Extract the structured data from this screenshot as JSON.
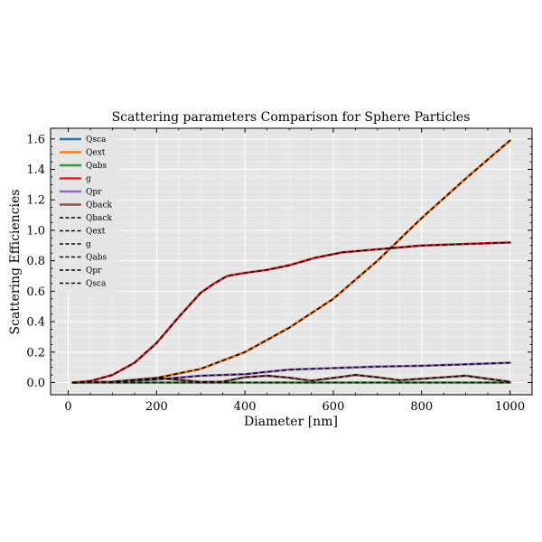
{
  "chart_data": {
    "type": "line",
    "title": "Scattering parameters Comparison for Sphere Particles",
    "xlabel": "Diameter [nm]",
    "ylabel": "Scattering Efficiencies",
    "xlim": [
      -40,
      1050
    ],
    "ylim": [
      -0.08,
      1.67
    ],
    "xticks": [
      0,
      200,
      400,
      600,
      800,
      1000
    ],
    "yticks": [
      0.0,
      0.2,
      0.4,
      0.6,
      0.8,
      1.0,
      1.2,
      1.4,
      1.6
    ],
    "xtick_labels": [
      "0",
      "200",
      "400",
      "600",
      "800",
      "1000"
    ],
    "ytick_labels": [
      "0.0",
      "0.2",
      "0.4",
      "0.6",
      "0.8",
      "1.0",
      "1.2",
      "1.4",
      "1.6"
    ],
    "grid": true,
    "background": "#e5e5e5",
    "legend_position": "upper-left",
    "series": [
      {
        "name": "Qsca",
        "style": "solid",
        "color": "#1f77b4",
        "x": [
          10,
          100,
          200,
          300,
          400,
          500,
          600,
          700,
          800,
          900,
          1000
        ],
        "y": [
          0.0,
          0.005,
          0.03,
          0.09,
          0.2,
          0.36,
          0.55,
          0.8,
          1.08,
          1.34,
          1.59
        ]
      },
      {
        "name": "Qext",
        "style": "solid",
        "color": "#ff7f0e",
        "x": [
          10,
          100,
          200,
          300,
          400,
          500,
          600,
          700,
          800,
          900,
          1000
        ],
        "y": [
          0.0,
          0.005,
          0.03,
          0.09,
          0.2,
          0.36,
          0.55,
          0.8,
          1.08,
          1.34,
          1.59
        ]
      },
      {
        "name": "Qabs",
        "style": "solid",
        "color": "#2ca02c",
        "x": [
          10,
          1000
        ],
        "y": [
          0.0,
          0.0
        ]
      },
      {
        "name": "g",
        "style": "solid",
        "color": "#d62728",
        "x": [
          10,
          50,
          100,
          150,
          200,
          250,
          300,
          330,
          360,
          400,
          450,
          500,
          560,
          620,
          700,
          800,
          900,
          1000
        ],
        "y": [
          0.0,
          0.01,
          0.05,
          0.13,
          0.26,
          0.43,
          0.59,
          0.65,
          0.7,
          0.72,
          0.74,
          0.77,
          0.82,
          0.855,
          0.875,
          0.9,
          0.91,
          0.92
        ]
      },
      {
        "name": "Qpr",
        "style": "solid",
        "color": "#9467bd",
        "x": [
          10,
          100,
          200,
          300,
          400,
          450,
          500,
          600,
          700,
          800,
          900,
          1000
        ],
        "y": [
          0.0,
          0.005,
          0.02,
          0.045,
          0.055,
          0.07,
          0.085,
          0.095,
          0.105,
          0.11,
          0.12,
          0.13
        ]
      },
      {
        "name": "Qback",
        "style": "solid",
        "color": "#8c564b",
        "x": [
          10,
          100,
          200,
          250,
          300,
          350,
          400,
          450,
          500,
          550,
          600,
          650,
          700,
          750,
          800,
          850,
          900,
          1000
        ],
        "y": [
          0.0,
          0.005,
          0.03,
          0.018,
          0.004,
          0.006,
          0.035,
          0.045,
          0.032,
          0.012,
          0.03,
          0.05,
          0.035,
          0.015,
          0.025,
          0.035,
          0.045,
          0.005
        ]
      },
      {
        "name": "Qback",
        "style": "dashed",
        "color": "#000000",
        "x": [
          10,
          100,
          200,
          250,
          300,
          350,
          400,
          450,
          500,
          550,
          600,
          650,
          700,
          750,
          800,
          850,
          900,
          1000
        ],
        "y": [
          0.0,
          0.005,
          0.03,
          0.018,
          0.004,
          0.006,
          0.035,
          0.045,
          0.032,
          0.012,
          0.03,
          0.05,
          0.035,
          0.015,
          0.025,
          0.035,
          0.045,
          0.005
        ]
      },
      {
        "name": "Qext",
        "style": "dashed",
        "color": "#000000",
        "x": [
          10,
          100,
          200,
          300,
          400,
          500,
          600,
          700,
          800,
          900,
          1000
        ],
        "y": [
          0.0,
          0.005,
          0.03,
          0.09,
          0.2,
          0.36,
          0.55,
          0.8,
          1.08,
          1.34,
          1.59
        ]
      },
      {
        "name": "g",
        "style": "dashed",
        "color": "#000000",
        "x": [
          10,
          50,
          100,
          150,
          200,
          250,
          300,
          330,
          360,
          400,
          450,
          500,
          560,
          620,
          700,
          800,
          900,
          1000
        ],
        "y": [
          0.0,
          0.01,
          0.05,
          0.13,
          0.26,
          0.43,
          0.59,
          0.65,
          0.7,
          0.72,
          0.74,
          0.77,
          0.82,
          0.855,
          0.875,
          0.9,
          0.91,
          0.92
        ]
      },
      {
        "name": "Qabs",
        "style": "dashed",
        "color": "#000000",
        "x": [
          10,
          1000
        ],
        "y": [
          0.0,
          0.0
        ]
      },
      {
        "name": "Qpr",
        "style": "dashed",
        "color": "#000000",
        "x": [
          10,
          100,
          200,
          300,
          400,
          450,
          500,
          600,
          700,
          800,
          900,
          1000
        ],
        "y": [
          0.0,
          0.005,
          0.02,
          0.045,
          0.055,
          0.07,
          0.085,
          0.095,
          0.105,
          0.11,
          0.12,
          0.13
        ]
      },
      {
        "name": "Qsca",
        "style": "dashed",
        "color": "#000000",
        "x": [
          10,
          100,
          200,
          300,
          400,
          500,
          600,
          700,
          800,
          900,
          1000
        ],
        "y": [
          0.0,
          0.005,
          0.03,
          0.09,
          0.2,
          0.36,
          0.55,
          0.8,
          1.08,
          1.34,
          1.59
        ]
      }
    ]
  }
}
